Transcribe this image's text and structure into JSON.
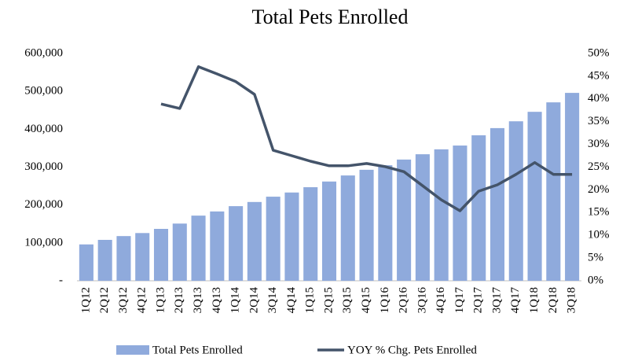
{
  "chart_data": {
    "type": "bar_line",
    "title": "Total Pets Enrolled",
    "categories": [
      "1Q12",
      "2Q12",
      "3Q12",
      "4Q12",
      "1Q13",
      "2Q13",
      "3Q13",
      "4Q13",
      "1Q14",
      "2Q14",
      "3Q14",
      "4Q14",
      "1Q15",
      "2Q15",
      "3Q15",
      "4Q15",
      "1Q16",
      "2Q16",
      "3Q16",
      "4Q16",
      "1Q17",
      "2Q17",
      "3Q17",
      "4Q17",
      "1Q18",
      "2Q18",
      "3Q18"
    ],
    "series": [
      {
        "name": "Total Pets Enrolled",
        "type": "bar",
        "color": "#8faadc",
        "values": [
          96000,
          108000,
          118000,
          126000,
          137000,
          151000,
          172000,
          183000,
          197000,
          208000,
          222000,
          233000,
          247000,
          262000,
          278000,
          293000,
          305000,
          320000,
          334000,
          347000,
          357000,
          384000,
          403000,
          421000,
          446000,
          471000,
          496000
        ]
      },
      {
        "name": "YOY % Chg. Pets Enrolled",
        "type": "line",
        "axis": "y2",
        "color": "#44546a",
        "values": [
          null,
          null,
          null,
          null,
          38.9,
          37.9,
          47.1,
          45.5,
          43.8,
          41,
          28.7,
          27.5,
          26.3,
          25.3,
          25.3,
          25.8,
          25.1,
          24,
          20.9,
          17.8,
          15.4,
          19.7,
          21.1,
          23.4,
          26,
          23.4,
          23.4
        ]
      }
    ],
    "ylim": [
      0,
      600000
    ],
    "yticks": [
      {
        "value": 0,
        "label": "-"
      },
      {
        "value": 100000,
        "label": "100,000"
      },
      {
        "value": 200000,
        "label": "200,000"
      },
      {
        "value": 300000,
        "label": "300,000"
      },
      {
        "value": 400000,
        "label": "400,000"
      },
      {
        "value": 500000,
        "label": "500,000"
      },
      {
        "value": 600000,
        "label": "600,000"
      }
    ],
    "y2lim": [
      0,
      50
    ],
    "y2ticks": [
      {
        "value": 0,
        "label": "0%"
      },
      {
        "value": 5,
        "label": "5%"
      },
      {
        "value": 10,
        "label": "10%"
      },
      {
        "value": 15,
        "label": "15%"
      },
      {
        "value": 20,
        "label": "20%"
      },
      {
        "value": 25,
        "label": "25%"
      },
      {
        "value": 30,
        "label": "30%"
      },
      {
        "value": 35,
        "label": "35%"
      },
      {
        "value": 40,
        "label": "40%"
      },
      {
        "value": 45,
        "label": "45%"
      },
      {
        "value": 50,
        "label": "50%"
      }
    ],
    "legend": "bottom"
  }
}
